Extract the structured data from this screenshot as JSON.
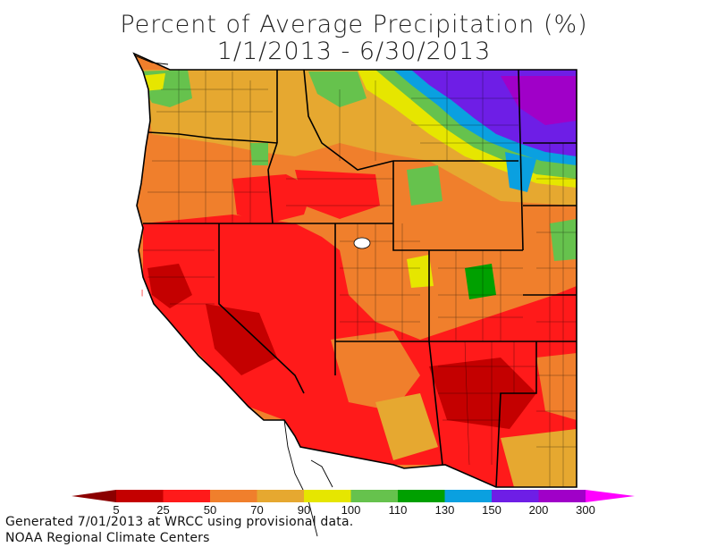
{
  "title": {
    "line1": "Percent of Average Precipitation (%)",
    "line2": "1/1/2013 - 6/30/2013"
  },
  "legend": {
    "colors": [
      "#8b0000",
      "#c40000",
      "#ff1a1a",
      "#f07f2c",
      "#e6a830",
      "#e6e600",
      "#66c24d",
      "#00a000",
      "#0aa0e0",
      "#6e1ee6",
      "#a000c8",
      "#ff00ff"
    ],
    "labels": [
      "5",
      "25",
      "50",
      "70",
      "90",
      "100",
      "110",
      "130",
      "150",
      "200",
      "300"
    ]
  },
  "map": {
    "palette": {
      "dark_red": "#b00000",
      "red": "#ff1a1a",
      "orange": "#f07f2c",
      "light_orange": "#e6a830",
      "yellow": "#e6e600",
      "light_green": "#66c24d",
      "green": "#00a000",
      "blue": "#0aa0e0",
      "purple": "#6e1ee6",
      "violet": "#a000c8"
    }
  },
  "footer": {
    "line1": "Generated 7/01/2013 at WRCC using provisional data.",
    "line2": "NOAA Regional Climate Centers"
  }
}
